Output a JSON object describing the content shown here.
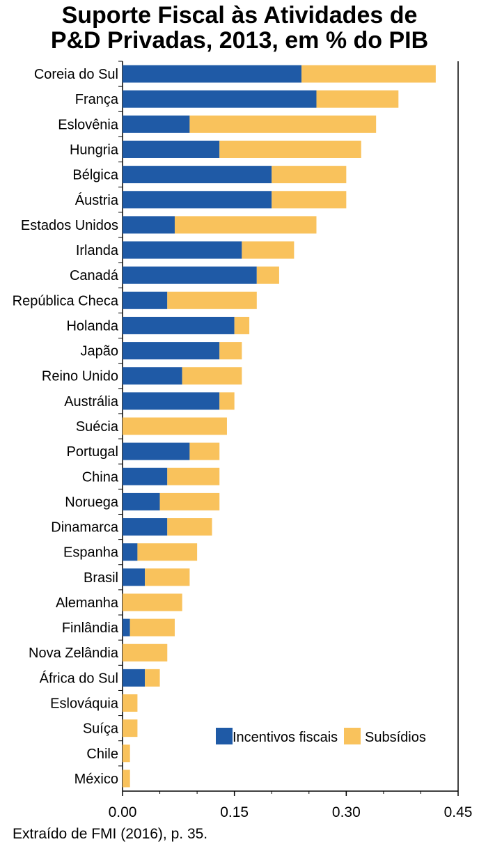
{
  "chart_data": {
    "type": "bar",
    "orientation": "horizontal",
    "stacked": true,
    "title_lines": [
      "Suporte Fiscal às Atividades de",
      "P&D Privadas, 2013, em % do PIB"
    ],
    "categories": [
      "Coreia do Sul",
      "França",
      "Eslovênia",
      "Hungria",
      "Bélgica",
      "Áustria",
      "Estados Unidos",
      "Irlanda",
      "Canadá",
      "República Checa",
      "Holanda",
      "Japão",
      "Reino Unido",
      "Austrália",
      "Suécia",
      "Portugal",
      "China",
      "Noruega",
      "Dinamarca",
      "Espanha",
      "Brasil",
      "Alemanha",
      "Finlândia",
      "Nova Zelândia",
      "África do Sul",
      "Eslováquia",
      "Suíça",
      "Chile",
      "México"
    ],
    "series": [
      {
        "name": "Incentivos fiscais",
        "color": "#1f5aa6",
        "values": [
          0.24,
          0.26,
          0.09,
          0.13,
          0.2,
          0.2,
          0.07,
          0.16,
          0.18,
          0.06,
          0.15,
          0.13,
          0.08,
          0.13,
          0.0,
          0.09,
          0.06,
          0.05,
          0.06,
          0.02,
          0.03,
          0.0,
          0.01,
          0.0,
          0.03,
          0.0,
          0.0,
          0.0,
          0.0
        ]
      },
      {
        "name": "Subsídios",
        "color": "#f9c25c",
        "values": [
          0.18,
          0.11,
          0.25,
          0.19,
          0.1,
          0.1,
          0.19,
          0.07,
          0.03,
          0.12,
          0.02,
          0.03,
          0.08,
          0.02,
          0.14,
          0.04,
          0.07,
          0.08,
          0.06,
          0.08,
          0.06,
          0.08,
          0.06,
          0.06,
          0.02,
          0.02,
          0.02,
          0.01,
          0.01
        ]
      }
    ],
    "xlim": [
      0,
      0.45
    ],
    "xticks": [
      "0.00",
      "0.15",
      "0.30",
      "0.45"
    ],
    "legend_position": "lower-right",
    "grid": false
  },
  "source": "Extraído de FMI (2016), p. 35."
}
